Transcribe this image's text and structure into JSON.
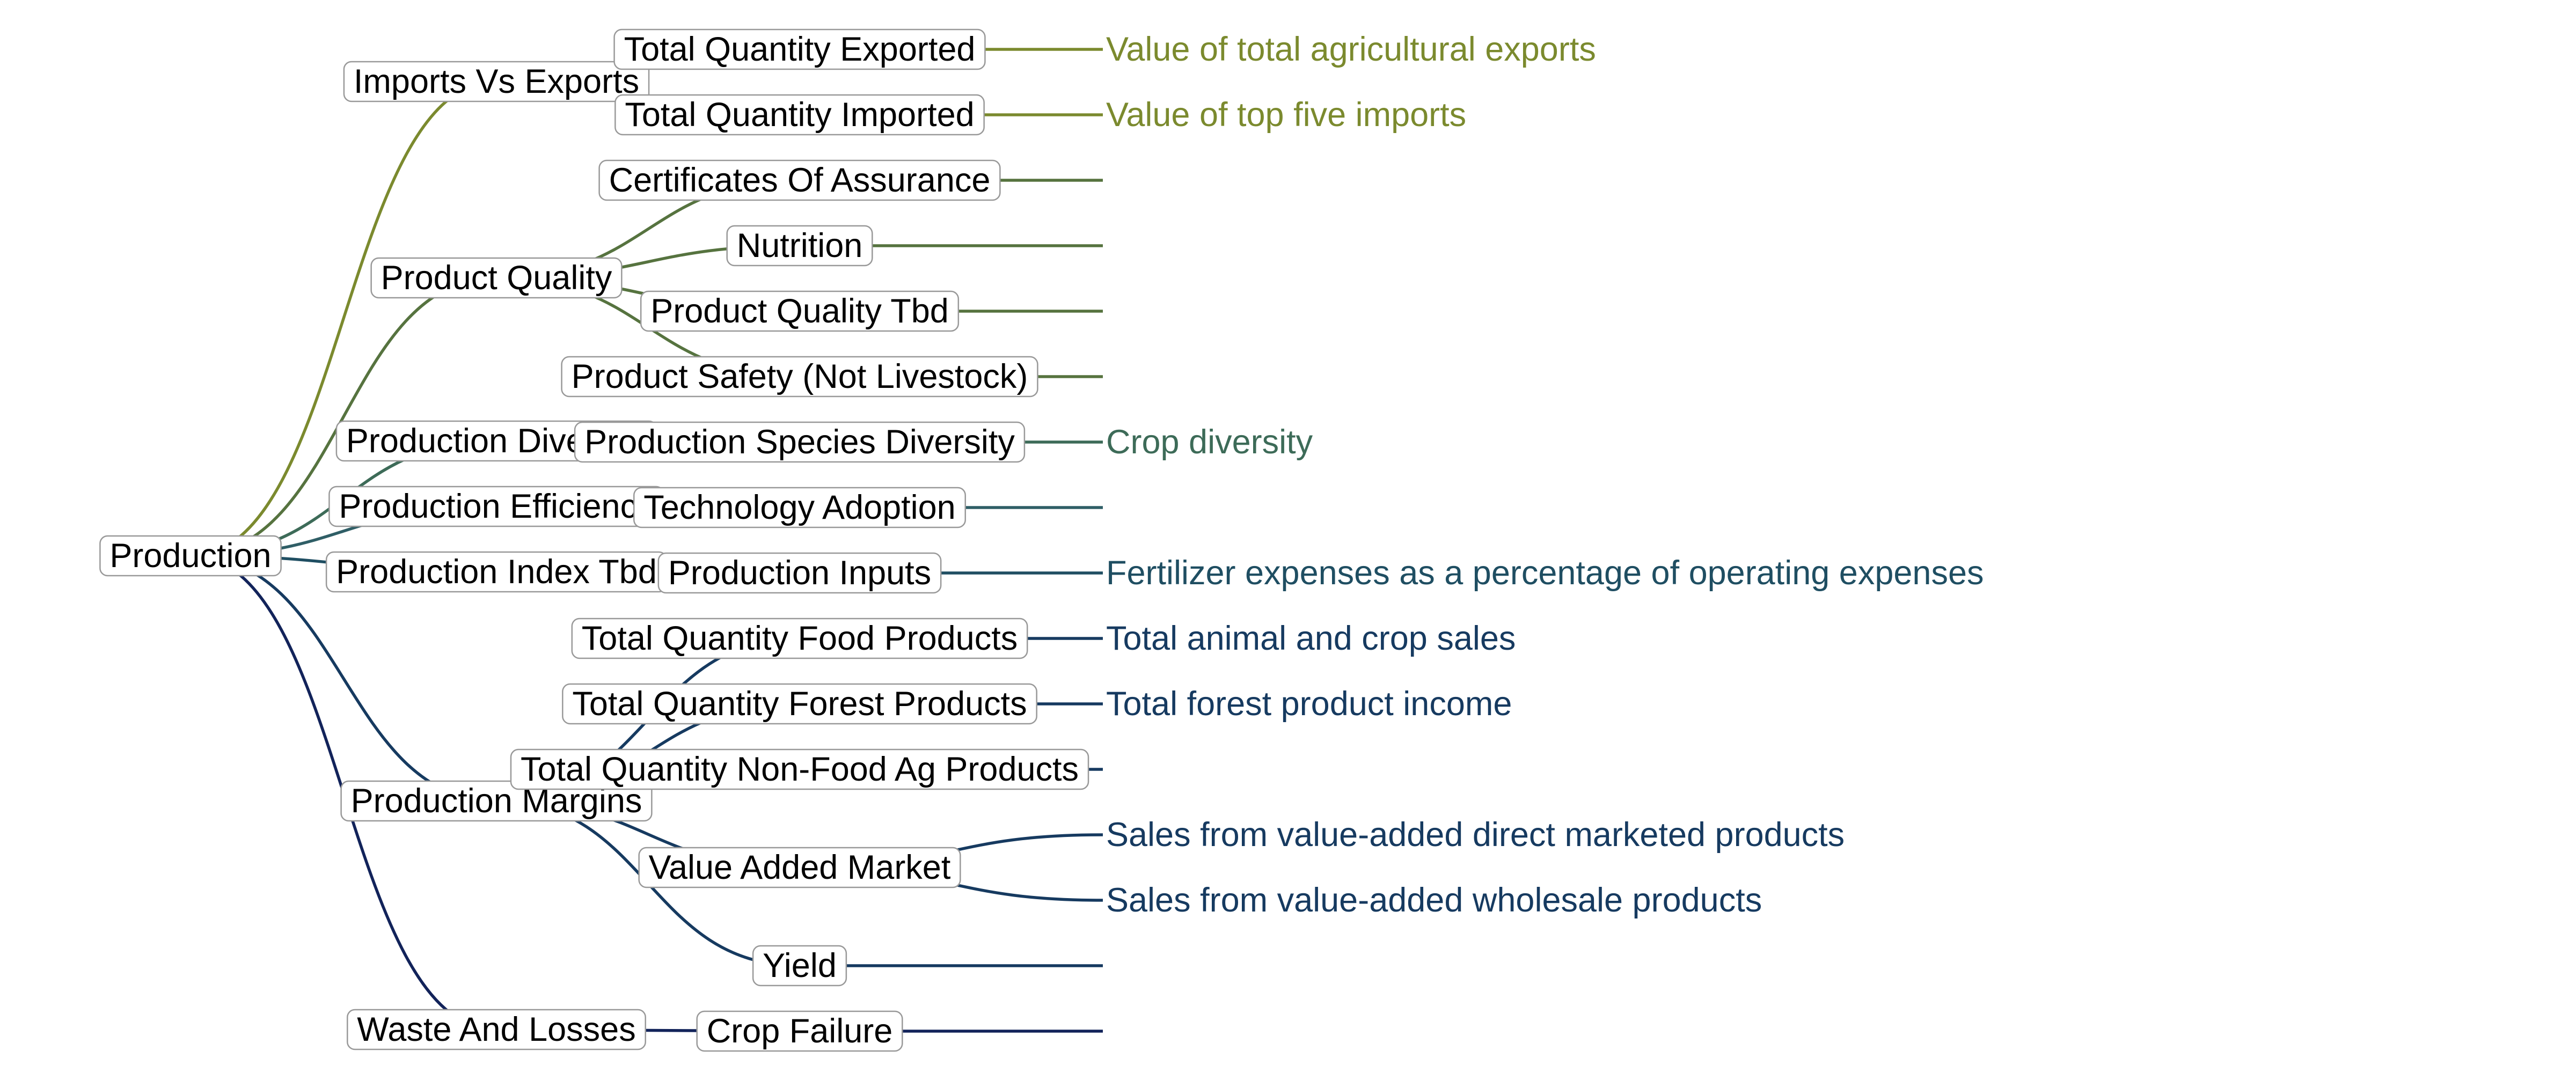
{
  "root": "Production",
  "branches": [
    {
      "label": "Imports Vs Exports",
      "color": "#7b8a2e",
      "children": [
        {
          "label": "Total Quantity Exported",
          "leaf": "Value of total agricultural exports"
        },
        {
          "label": "Total Quantity Imported",
          "leaf": "Value of top five imports"
        }
      ]
    },
    {
      "label": "Product Quality",
      "color": "#56733f",
      "children": [
        {
          "label": "Certificates Of Assurance",
          "leaf": ""
        },
        {
          "label": "Nutrition",
          "leaf": ""
        },
        {
          "label": "Product Quality Tbd",
          "leaf": ""
        },
        {
          "label": "Product Safety (Not Livestock)",
          "leaf": ""
        }
      ]
    },
    {
      "label": "Production Diversity",
      "color": "#3d6b58",
      "children": [
        {
          "label": "Production Species Diversity",
          "leaf": "Crop diversity"
        }
      ]
    },
    {
      "label": "Production Efficiency",
      "color": "#2f5e66",
      "children": [
        {
          "label": "Technology Adoption",
          "leaf": ""
        }
      ]
    },
    {
      "label": "Production Index Tbd",
      "color": "#1f4e62",
      "children": [
        {
          "label": "Production Inputs",
          "leaf": "Fertilizer expenses as a percentage of operating expenses"
        }
      ]
    },
    {
      "label": "Production Margins",
      "color": "#163a60",
      "children": [
        {
          "label": "Total Quantity Food Products",
          "leaf": "Total animal and crop sales"
        },
        {
          "label": "Total Quantity Forest Products",
          "leaf": "Total forest product income"
        },
        {
          "label": "Total Quantity Non-Food Ag Products",
          "leaf": ""
        },
        {
          "label": "Value Added Market",
          "leaves": [
            "Sales from value-added direct marketed products",
            "Sales from value-added wholesale products"
          ]
        },
        {
          "label": "Yield",
          "leaf": ""
        }
      ]
    },
    {
      "label": "Waste And Losses",
      "color": "#12235a",
      "children": [
        {
          "label": "Crop Failure",
          "leaf": ""
        }
      ]
    }
  ]
}
